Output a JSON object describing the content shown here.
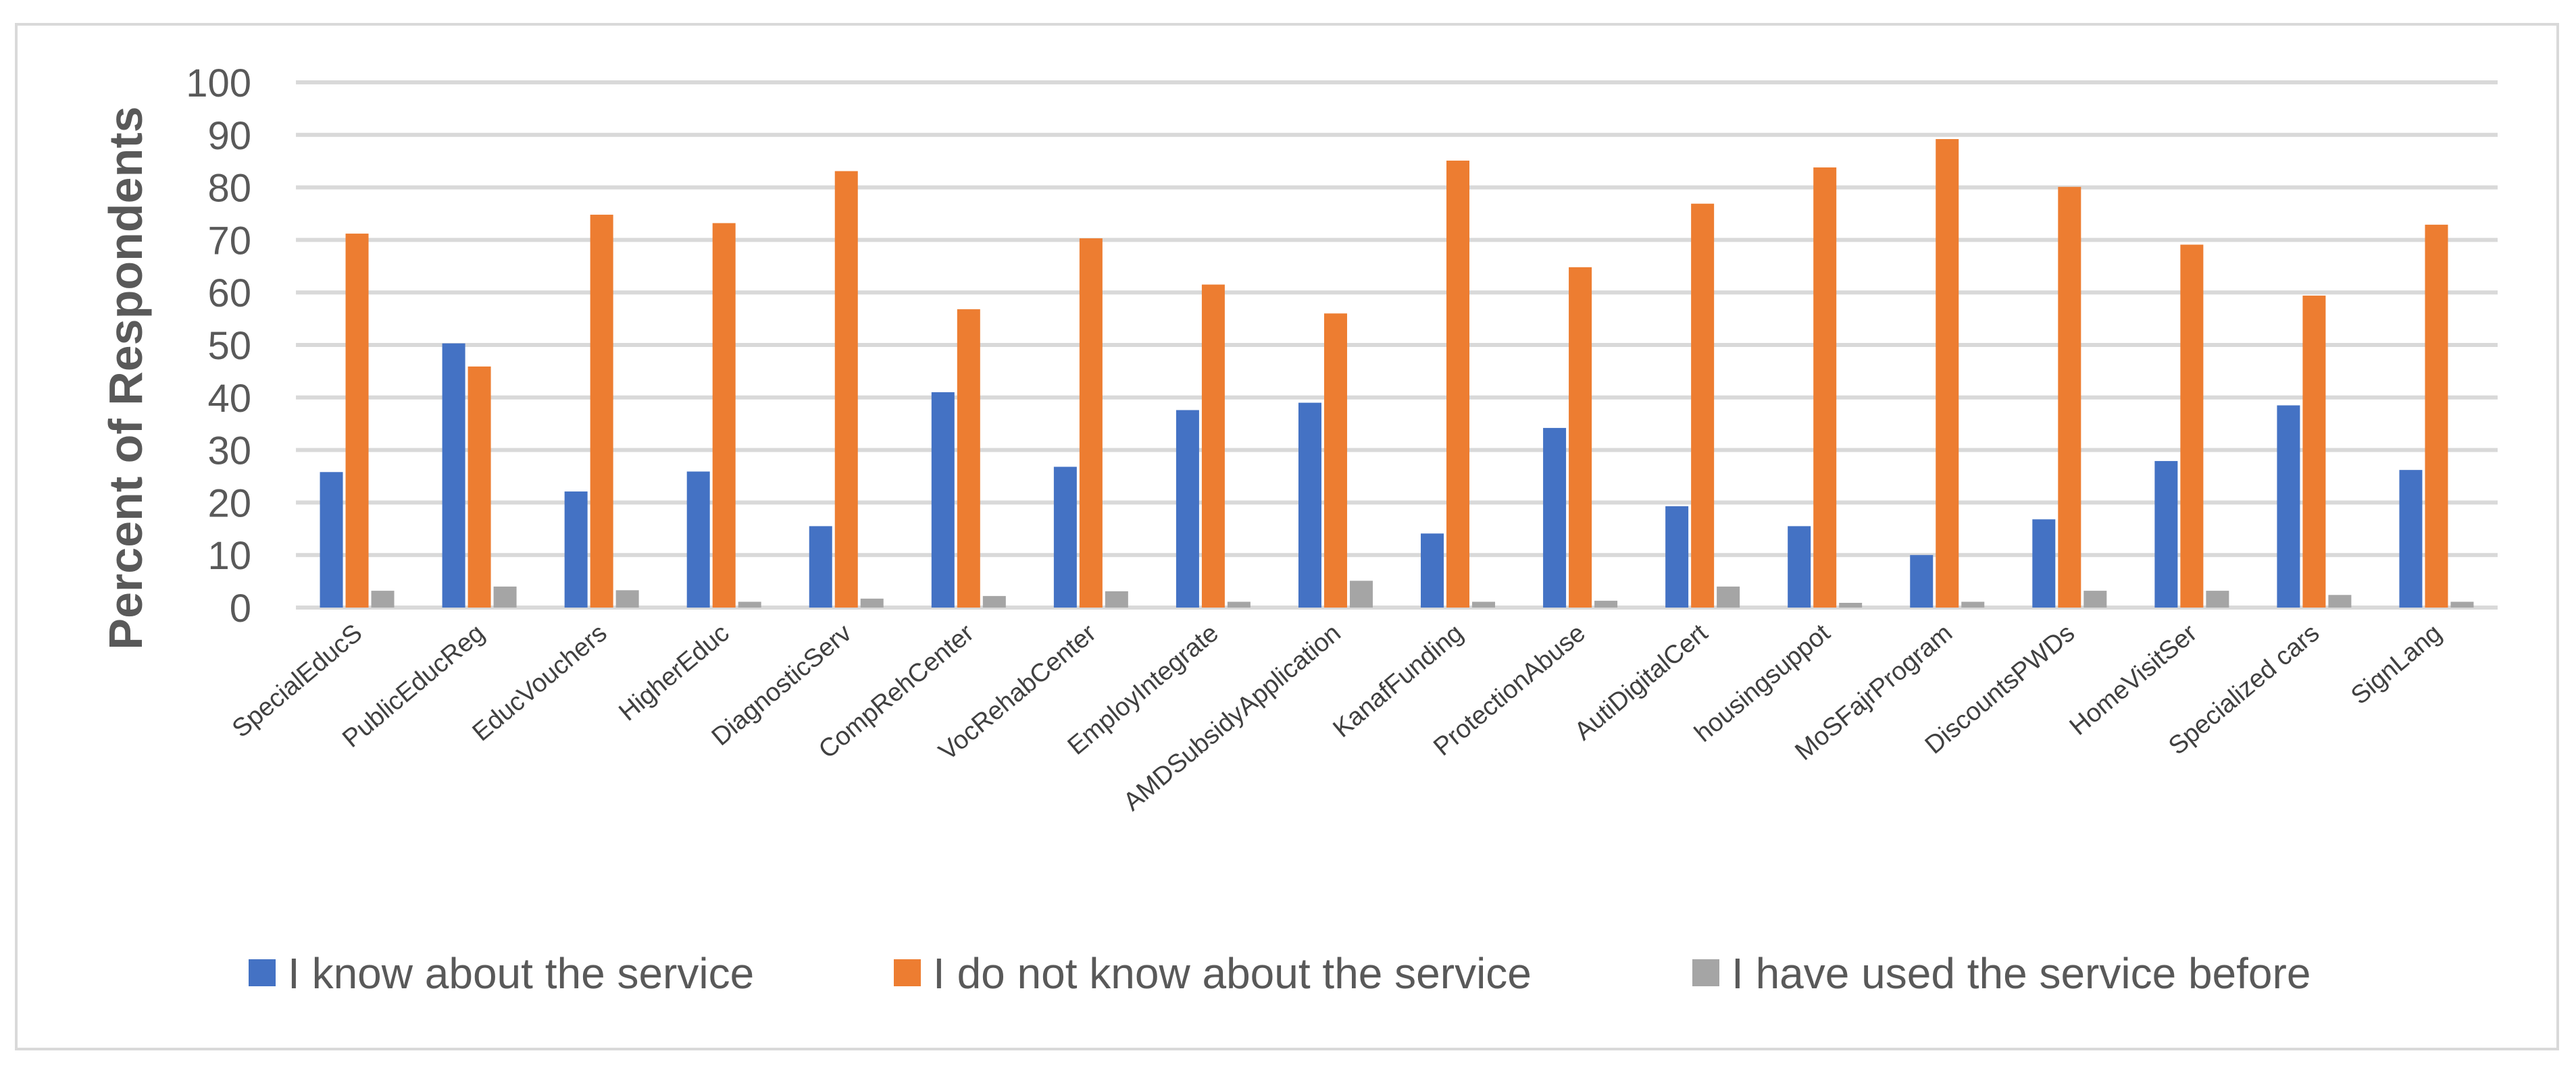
{
  "chart_data": {
    "type": "bar",
    "title": "",
    "xlabel": "",
    "ylabel": "Percent of Respondents",
    "ylim": [
      0,
      100
    ],
    "yticks": [
      0,
      10,
      20,
      30,
      40,
      50,
      60,
      70,
      80,
      90,
      100
    ],
    "grid": true,
    "legend_position": "bottom",
    "categories": [
      "SpecialEducS",
      "PublicEducReg",
      "EducVouchers",
      "HigherEduc",
      "DiagnosticServ",
      "CompRehCenter",
      "VocRehabCenter",
      "EmployIntegrate",
      "AMDSubsidyApplication",
      "KanafFunding",
      "ProtectionAbuse",
      "AutiDigitalCert",
      "housingsuppot",
      "MoSFajrProgram",
      "DiscountsPWDs",
      "HomeVisitSer",
      "Specialized cars",
      "SignLang"
    ],
    "series": [
      {
        "name": "I know about the service",
        "color": "#4472c4",
        "values": [
          25.8,
          50.3,
          22.1,
          25.9,
          15.5,
          41.0,
          26.8,
          37.6,
          39.0,
          14.1,
          34.2,
          19.3,
          15.5,
          10.0,
          16.8,
          27.9,
          38.5,
          26.2
        ]
      },
      {
        "name": "I do not know about the service",
        "color": "#ed7d31",
        "values": [
          71.2,
          45.9,
          74.8,
          73.2,
          83.1,
          56.8,
          70.3,
          61.5,
          56.0,
          85.1,
          64.8,
          76.9,
          83.8,
          89.2,
          80.1,
          69.1,
          59.4,
          72.9
        ]
      },
      {
        "name": "I have used the service before",
        "color": "#a5a5a5",
        "values": [
          3.2,
          4.0,
          3.3,
          1.1,
          1.7,
          2.2,
          3.1,
          1.1,
          5.1,
          1.1,
          1.3,
          4.0,
          0.9,
          1.1,
          3.2,
          3.2,
          2.4,
          1.1
        ]
      }
    ]
  },
  "colors": {
    "grid": "#d9d9d9",
    "frame": "#d9d9d9",
    "text": "#595959"
  }
}
